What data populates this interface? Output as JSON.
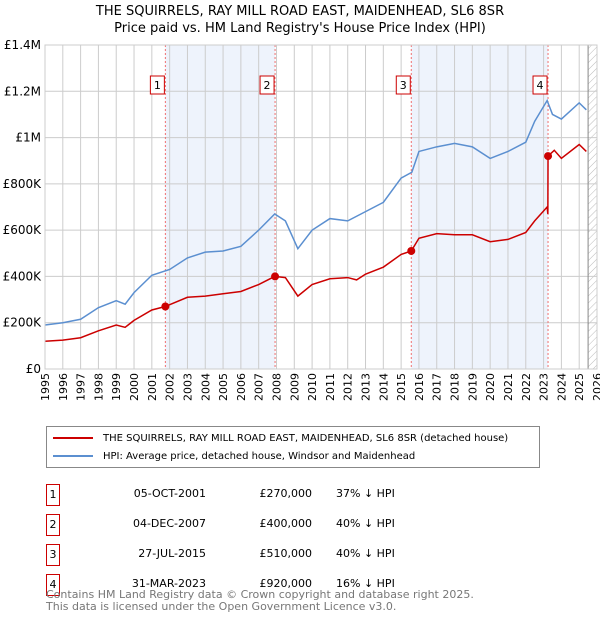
{
  "title": "THE SQUIRRELS, RAY MILL ROAD EAST, MAIDENHEAD, SL6 8SR",
  "subtitle": "Price paid vs. HM Land Registry's House Price Index (HPI)",
  "chart_data": {
    "type": "line",
    "title": "THE SQUIRRELS, RAY MILL ROAD EAST, MAIDENHEAD, SL6 8SR",
    "xlim": [
      1995,
      2026
    ],
    "ylim": [
      0,
      1400000
    ],
    "y_ticks": [
      {
        "v": 0,
        "label": "£0"
      },
      {
        "v": 200000,
        "label": "£200K"
      },
      {
        "v": 400000,
        "label": "£400K"
      },
      {
        "v": 600000,
        "label": "£600K"
      },
      {
        "v": 800000,
        "label": "£800K"
      },
      {
        "v": 1000000,
        "label": "£1M"
      },
      {
        "v": 1200000,
        "label": "£1.2M"
      },
      {
        "v": 1400000,
        "label": "£1.4M"
      }
    ],
    "x_ticks": [
      1995,
      1996,
      1997,
      1998,
      1999,
      2000,
      2001,
      2002,
      2003,
      2004,
      2005,
      2006,
      2007,
      2008,
      2009,
      2010,
      2011,
      2012,
      2013,
      2014,
      2015,
      2016,
      2017,
      2018,
      2019,
      2020,
      2021,
      2022,
      2023,
      2024,
      2025,
      2026
    ],
    "grid": true,
    "forecast_start": 2025.5,
    "series": [
      {
        "name": "THE SQUIRRELS, RAY MILL ROAD EAST, MAIDENHEAD, SL6 8SR (detached house)",
        "color": "#cc0000",
        "x": [
          1995,
          1996,
          1997,
          1998,
          1999,
          1999.5,
          2000,
          2001,
          2001.75,
          2003,
          2004,
          2005,
          2006,
          2007,
          2007.9,
          2008.5,
          2009.2,
          2010,
          2011,
          2012,
          2012.5,
          2013,
          2014,
          2015,
          2015.57,
          2016,
          2017,
          2018,
          2019,
          2020,
          2021,
          2022,
          2022.5,
          2023.2,
          2023.24,
          2023.25,
          2023.6,
          2024,
          2025,
          2025.4
        ],
        "y": [
          120000,
          125000,
          135000,
          165000,
          190000,
          180000,
          210000,
          255000,
          270000,
          310000,
          315000,
          325000,
          335000,
          365000,
          400000,
          395000,
          315000,
          365000,
          390000,
          395000,
          385000,
          410000,
          440000,
          495000,
          510000,
          565000,
          585000,
          580000,
          580000,
          550000,
          560000,
          590000,
          640000,
          700000,
          670000,
          920000,
          945000,
          910000,
          970000,
          940000
        ]
      },
      {
        "name": "HPI: Average price, detached house, Windsor and Maidenhead",
        "color": "#5b8fd0",
        "x": [
          1995,
          1996,
          1997,
          1998,
          1999,
          1999.5,
          2000,
          2001,
          2002,
          2003,
          2004,
          2005,
          2006,
          2007,
          2007.9,
          2008.5,
          2009.2,
          2010,
          2011,
          2012,
          2013,
          2014,
          2015,
          2015.6,
          2016,
          2017,
          2018,
          2019,
          2020,
          2021,
          2022,
          2022.5,
          2023.2,
          2023.5,
          2024,
          2025,
          2025.4
        ],
        "y": [
          190000,
          200000,
          215000,
          265000,
          295000,
          280000,
          330000,
          405000,
          430000,
          480000,
          505000,
          510000,
          530000,
          600000,
          670000,
          640000,
          520000,
          600000,
          650000,
          640000,
          680000,
          720000,
          825000,
          850000,
          940000,
          960000,
          975000,
          960000,
          910000,
          940000,
          980000,
          1070000,
          1160000,
          1100000,
          1080000,
          1150000,
          1120000
        ]
      }
    ],
    "sales": [
      {
        "label": "1",
        "x": 2001.76,
        "y": 270000,
        "date": "05-OCT-2001",
        "price": "£270,000",
        "hpi": "37% ↓ HPI"
      },
      {
        "label": "2",
        "x": 2007.92,
        "y": 400000,
        "date": "04-DEC-2007",
        "price": "£400,000",
        "hpi": "40% ↓ HPI"
      },
      {
        "label": "3",
        "x": 2015.57,
        "y": 510000,
        "date": "27-JUL-2015",
        "price": "£510,000",
        "hpi": "40% ↓ HPI"
      },
      {
        "label": "4",
        "x": 2023.25,
        "y": 920000,
        "date": "31-MAR-2023",
        "price": "£920,000",
        "hpi": "16% ↓ HPI"
      }
    ]
  },
  "legend": {
    "property": "THE SQUIRRELS, RAY MILL ROAD EAST, MAIDENHEAD, SL6 8SR (detached house)",
    "hpi": "HPI: Average price, detached house, Windsor and Maidenhead"
  },
  "footer": {
    "line1": "Contains HM Land Registry data © Crown copyright and database right 2025.",
    "line2": "This data is licensed under the Open Government Licence v3.0."
  }
}
